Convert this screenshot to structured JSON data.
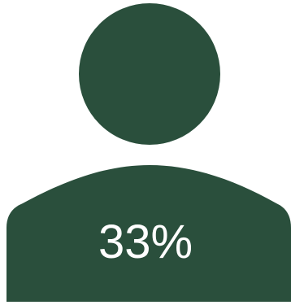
{
  "infographic": {
    "percent_label": "33%",
    "icon": "person-icon",
    "colors": {
      "figure": "#2a4f3c",
      "text": "#ffffff",
      "background": "#ffffff"
    }
  }
}
